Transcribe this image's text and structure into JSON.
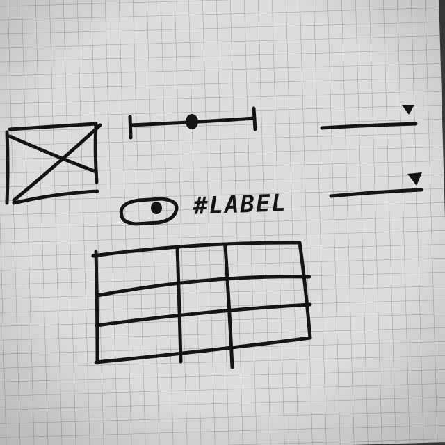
{
  "sketch": {
    "label_text": "#LABEL",
    "ink_color": "#141414",
    "paper_color": "#dcdcdc",
    "grid_color": "#9a9a9a",
    "controls": [
      "image-placeholder",
      "slider",
      "dropdown",
      "dropdown",
      "radio-button",
      "label",
      "table"
    ],
    "slider_value_fraction": 0.5,
    "table": {
      "rows": 3,
      "columns": 3
    }
  }
}
